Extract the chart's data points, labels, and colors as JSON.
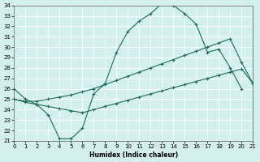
{
  "xlabel": "Humidex (Indice chaleur)",
  "background_color": "#d4f0ee",
  "grid_color": "#ffffff",
  "line_color": "#1a6b5a",
  "xlim": [
    0,
    21
  ],
  "ylim": [
    21,
    34
  ],
  "xticks": [
    0,
    1,
    2,
    3,
    4,
    5,
    6,
    7,
    8,
    9,
    10,
    11,
    12,
    13,
    14,
    15,
    16,
    17,
    18,
    19,
    20,
    21
  ],
  "yticks": [
    21,
    22,
    23,
    24,
    25,
    26,
    27,
    28,
    29,
    30,
    31,
    32,
    33,
    34
  ],
  "line1_x": [
    0,
    1,
    2,
    3,
    4,
    5,
    6,
    7,
    8,
    9,
    10,
    11,
    12,
    13,
    14,
    15,
    16,
    17,
    18,
    19,
    20
  ],
  "line1_y": [
    26,
    25,
    24.5,
    23.5,
    21.2,
    21.2,
    22.2,
    25.5,
    26.5,
    29.5,
    31.5,
    32.5,
    33.2,
    34.2,
    34.0,
    33.2,
    32.2,
    29.5,
    29.8,
    28.0,
    26.0
  ],
  "line2_x": [
    0,
    1,
    2,
    3,
    4,
    5,
    6,
    7,
    8,
    9,
    10,
    11,
    12,
    13,
    14,
    15,
    16,
    17,
    18,
    19,
    20,
    21
  ],
  "line2_y": [
    25.0,
    24.8,
    24.8,
    25.0,
    25.2,
    25.4,
    25.7,
    26.0,
    26.4,
    26.8,
    27.2,
    27.6,
    28.0,
    28.4,
    28.8,
    29.2,
    29.6,
    30.0,
    30.4,
    30.8,
    28.5,
    26.5
  ],
  "line3_x": [
    0,
    1,
    2,
    3,
    4,
    5,
    6,
    7,
    8,
    9,
    10,
    11,
    12,
    13,
    14,
    15,
    16,
    17,
    18,
    19,
    20,
    21
  ],
  "line3_y": [
    25.0,
    24.7,
    24.5,
    24.3,
    24.1,
    23.9,
    23.7,
    24.0,
    24.3,
    24.6,
    24.9,
    25.2,
    25.5,
    25.8,
    26.1,
    26.4,
    26.7,
    27.0,
    27.3,
    27.6,
    27.9,
    26.5
  ]
}
